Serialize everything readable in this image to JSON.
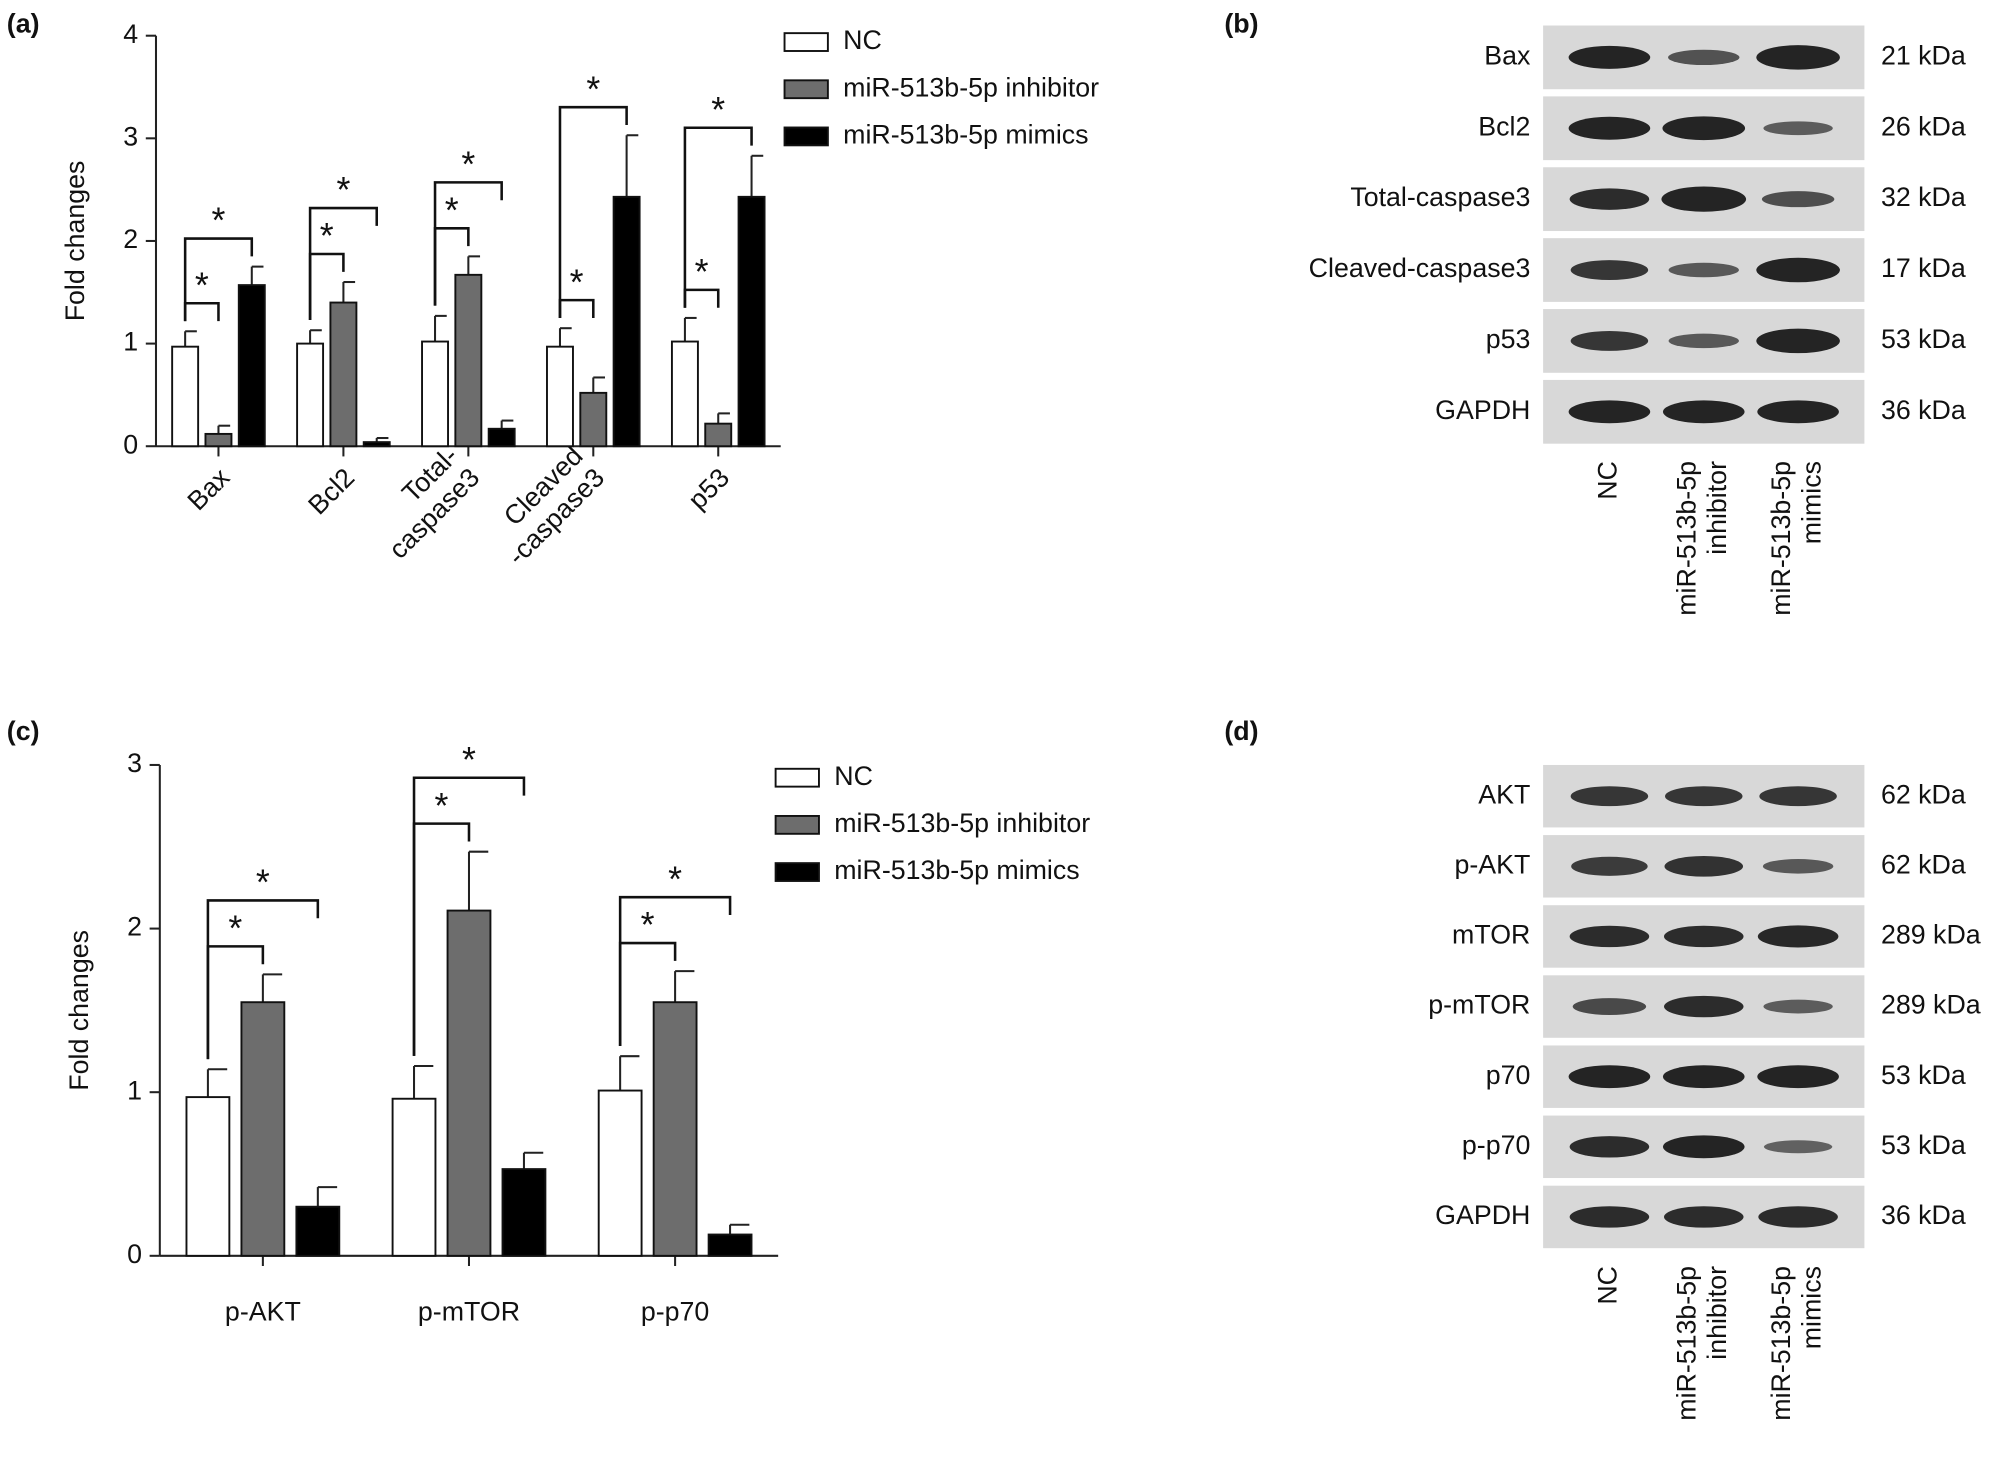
{
  "chart_data": [
    {
      "type": "bar",
      "panel": "(a)",
      "y_label": "Fold changes",
      "categories": [
        [
          "Bax"
        ],
        [
          "Bcl2"
        ],
        [
          "Total-",
          "caspase3"
        ],
        [
          "Cleaved",
          "-caspase3"
        ],
        [
          "p53"
        ]
      ],
      "series": [
        {
          "name": "NC",
          "color": "#ffffff",
          "values": [
            0.97,
            1.0,
            1.02,
            0.97,
            1.02
          ],
          "errors": [
            0.15,
            0.13,
            0.25,
            0.18,
            0.23
          ]
        },
        {
          "name": "miR-513b-5p inhibitor",
          "color": "#6d6d6d",
          "values": [
            0.12,
            1.4,
            1.67,
            0.52,
            0.22
          ],
          "errors": [
            0.08,
            0.2,
            0.18,
            0.15,
            0.1
          ]
        },
        {
          "name": "miR-513b-5p mimics",
          "color": "#000000",
          "values": [
            1.57,
            0.04,
            0.17,
            2.43,
            2.43
          ],
          "errors": [
            0.18,
            0.04,
            0.08,
            0.6,
            0.4
          ]
        }
      ],
      "ylim": [
        0,
        4
      ],
      "yticks": [
        0,
        1,
        2,
        3,
        4
      ],
      "significance": [
        {
          "category": 0,
          "from": 0,
          "to": 1,
          "label": "*"
        },
        {
          "category": 0,
          "from": 0,
          "to": 2,
          "label": "*"
        },
        {
          "category": 1,
          "from": 0,
          "to": 1,
          "label": "*"
        },
        {
          "category": 1,
          "from": 0,
          "to": 2,
          "label": "*"
        },
        {
          "category": 2,
          "from": 0,
          "to": 1,
          "label": "*"
        },
        {
          "category": 2,
          "from": 0,
          "to": 2,
          "label": "*"
        },
        {
          "category": 3,
          "from": 0,
          "to": 1,
          "label": "*"
        },
        {
          "category": 3,
          "from": 0,
          "to": 2,
          "label": "*"
        },
        {
          "category": 4,
          "from": 0,
          "to": 1,
          "label": "*"
        },
        {
          "category": 4,
          "from": 0,
          "to": 2,
          "label": "*"
        }
      ]
    },
    {
      "type": "bar",
      "panel": "(c)",
      "y_label": "Fold changes",
      "categories": [
        [
          "p-AKT"
        ],
        [
          "p-mTOR"
        ],
        [
          "p-p70"
        ]
      ],
      "series": [
        {
          "name": "NC",
          "color": "#ffffff",
          "values": [
            0.97,
            0.96,
            1.01
          ],
          "errors": [
            0.17,
            0.2,
            0.21
          ]
        },
        {
          "name": "miR-513b-5p inhibitor",
          "color": "#6d6d6d",
          "values": [
            1.55,
            2.11,
            1.55
          ],
          "errors": [
            0.17,
            0.36,
            0.19
          ]
        },
        {
          "name": "miR-513b-5p mimics",
          "color": "#000000",
          "values": [
            0.3,
            0.53,
            0.13
          ],
          "errors": [
            0.12,
            0.1,
            0.06
          ]
        }
      ],
      "ylim": [
        0,
        3
      ],
      "yticks": [
        0,
        1,
        2,
        3
      ],
      "significance": [
        {
          "category": 0,
          "from": 0,
          "to": 1,
          "label": "*"
        },
        {
          "category": 0,
          "from": 0,
          "to": 2,
          "label": "*"
        },
        {
          "category": 1,
          "from": 0,
          "to": 1,
          "label": "*"
        },
        {
          "category": 1,
          "from": 0,
          "to": 2,
          "label": "*"
        },
        {
          "category": 2,
          "from": 0,
          "to": 1,
          "label": "*"
        },
        {
          "category": 2,
          "from": 0,
          "to": 2,
          "label": "*"
        }
      ]
    }
  ],
  "blots": [
    {
      "panel": "(b)",
      "rows": [
        {
          "label": "Bax",
          "size": "21 kDa"
        },
        {
          "label": "Bcl2",
          "size": "26 kDa"
        },
        {
          "label": "Total-caspase3",
          "size": "32 kDa"
        },
        {
          "label": "Cleaved-caspase3",
          "size": "17 kDa"
        },
        {
          "label": "p53",
          "size": "53 kDa"
        },
        {
          "label": "GAPDH",
          "size": "36 kDa"
        }
      ],
      "lanes": [
        [
          "NC"
        ],
        [
          "miR-513b-5p",
          "inhibitor"
        ],
        [
          "miR-513b-5p",
          "mimics"
        ]
      ]
    },
    {
      "panel": "(d)",
      "rows": [
        {
          "label": "AKT",
          "size": "62 kDa"
        },
        {
          "label": "p-AKT",
          "size": "62 kDa"
        },
        {
          "label": "mTOR",
          "size": "289 kDa"
        },
        {
          "label": "p-mTOR",
          "size": "289 kDa"
        },
        {
          "label": "p70",
          "size": "53 kDa"
        },
        {
          "label": "p-p70",
          "size": "53 kDa"
        },
        {
          "label": "GAPDH",
          "size": "36 kDa"
        }
      ],
      "lanes": [
        [
          "NC"
        ],
        [
          "miR-513b-5p",
          "inhibitor"
        ],
        [
          "miR-513b-5p",
          "mimics"
        ]
      ]
    }
  ]
}
